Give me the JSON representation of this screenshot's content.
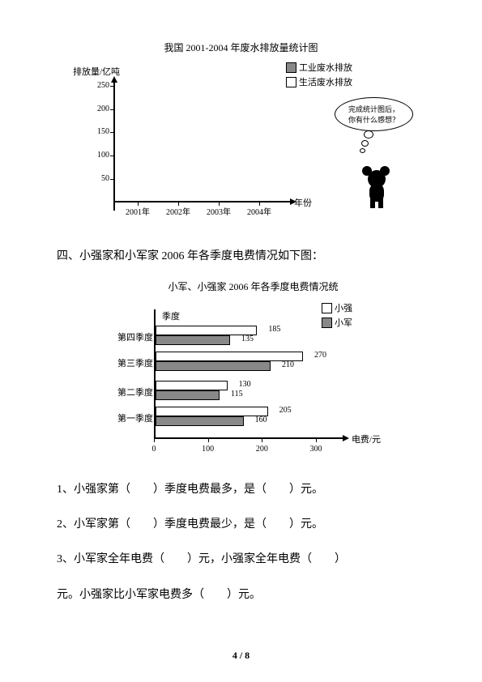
{
  "chart1": {
    "title": "我国 2001-2004 年废水排放量统计图",
    "y_label": "排放量/亿吨",
    "x_label": "年份",
    "legend": [
      {
        "label": "工业废水排放",
        "filled": true
      },
      {
        "label": "生活废水排放",
        "filled": false
      }
    ],
    "y_ticks": [
      50,
      100,
      150,
      200,
      250
    ],
    "x_ticks": [
      "2001年",
      "2002年",
      "2003年",
      "2004年"
    ],
    "ylim": [
      0,
      260
    ],
    "speech": {
      "line1": "完成统计图后，",
      "line2": "你有什么感想？"
    }
  },
  "section4_heading": "四、小强家和小军家 2006 年各季度电费情况如下图：",
  "chart2": {
    "title": "小军、小强家 2006 年各季度电费情况统",
    "y_label": "季度",
    "x_label": "电费/元",
    "legend": [
      {
        "label": "小强",
        "filled": false
      },
      {
        "label": "小军",
        "filled": true
      }
    ],
    "x_ticks": [
      0,
      100,
      200,
      300
    ],
    "xlim": [
      0,
      300
    ],
    "quarters": [
      {
        "name": "第四季度",
        "xiaoqiang": 185,
        "xiaojun": 135
      },
      {
        "name": "第三季度",
        "xiaoqiang": 270,
        "xiaojun": 210
      },
      {
        "name": "第二季度",
        "xiaoqiang": 130,
        "xiaojun": 115
      },
      {
        "name": "第一季度",
        "xiaoqiang": 205,
        "xiaojun": 160
      }
    ],
    "bar_fill_color": "#888888"
  },
  "questions": {
    "q1": "1、小强家第（　　）季度电费最多，是（　　）元。",
    "q2": "2、小军家第（　　）季度电费最少，是（　　）元。",
    "q3a": "3、小军家全年电费（　　）元，小强家全年电费（　　）",
    "q3b": "元。小强家比小军家电费多（　　）元。"
  },
  "page_number": "4 / 8"
}
